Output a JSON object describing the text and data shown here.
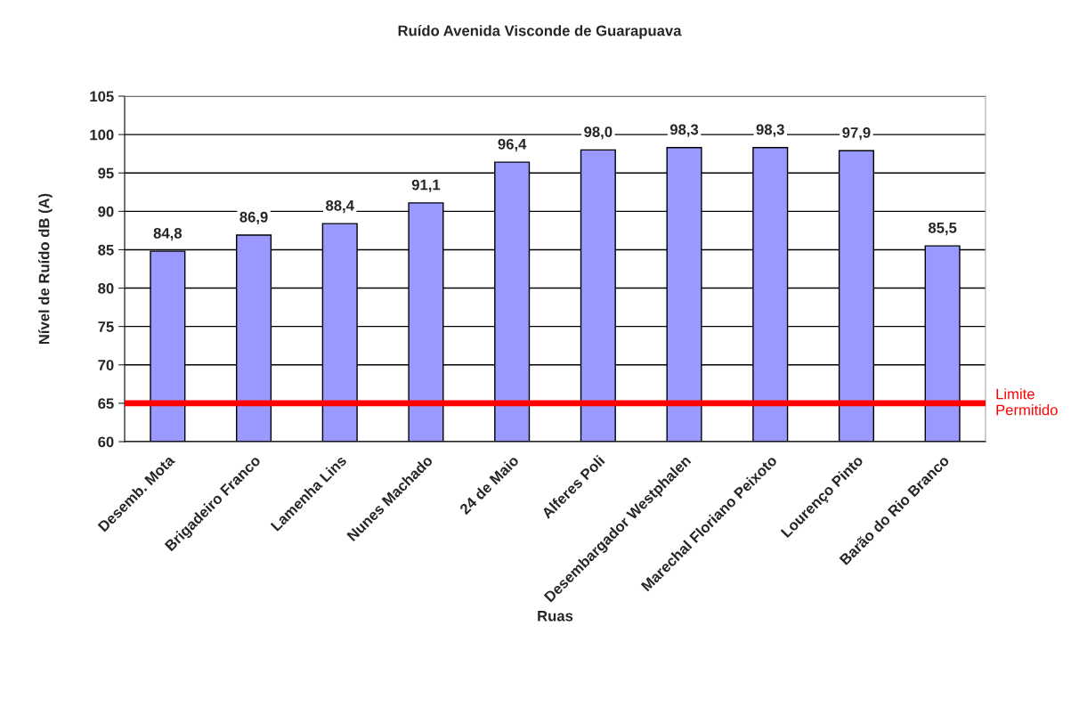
{
  "chart_data": {
    "type": "bar",
    "title": "Ruído Avenida Visconde de Guarapuava",
    "xlabel": "Ruas",
    "ylabel": "Nível de Ruído dB (A)",
    "categories": [
      "Desemb. Mota",
      "Brigadeiro Franco",
      "Lamenha Lins",
      "Nunes Machado",
      "24 de Maio",
      "Alferes Poli",
      "Desembargador Westphalen",
      "Marechal Floriano Peixoto",
      "Lourenço Pinto",
      "Barão do Rio Branco"
    ],
    "values": [
      84.8,
      86.9,
      88.4,
      91.1,
      96.4,
      98.0,
      98.3,
      98.3,
      97.9,
      85.5
    ],
    "value_labels": [
      "84,8",
      "86,9",
      "88,4",
      "91,1",
      "96,4",
      "98,0",
      "98,3",
      "98,3",
      "97,9",
      "85,5"
    ],
    "color": "#9999ff",
    "ylim": [
      60,
      105
    ],
    "yticks": [
      60,
      65,
      70,
      75,
      80,
      85,
      90,
      95,
      100,
      105
    ],
    "grid": "y",
    "ref_lines": [
      {
        "axis": "y",
        "value": 65,
        "label": "Limite\nPermitido",
        "color": "#ff0000"
      }
    ]
  }
}
